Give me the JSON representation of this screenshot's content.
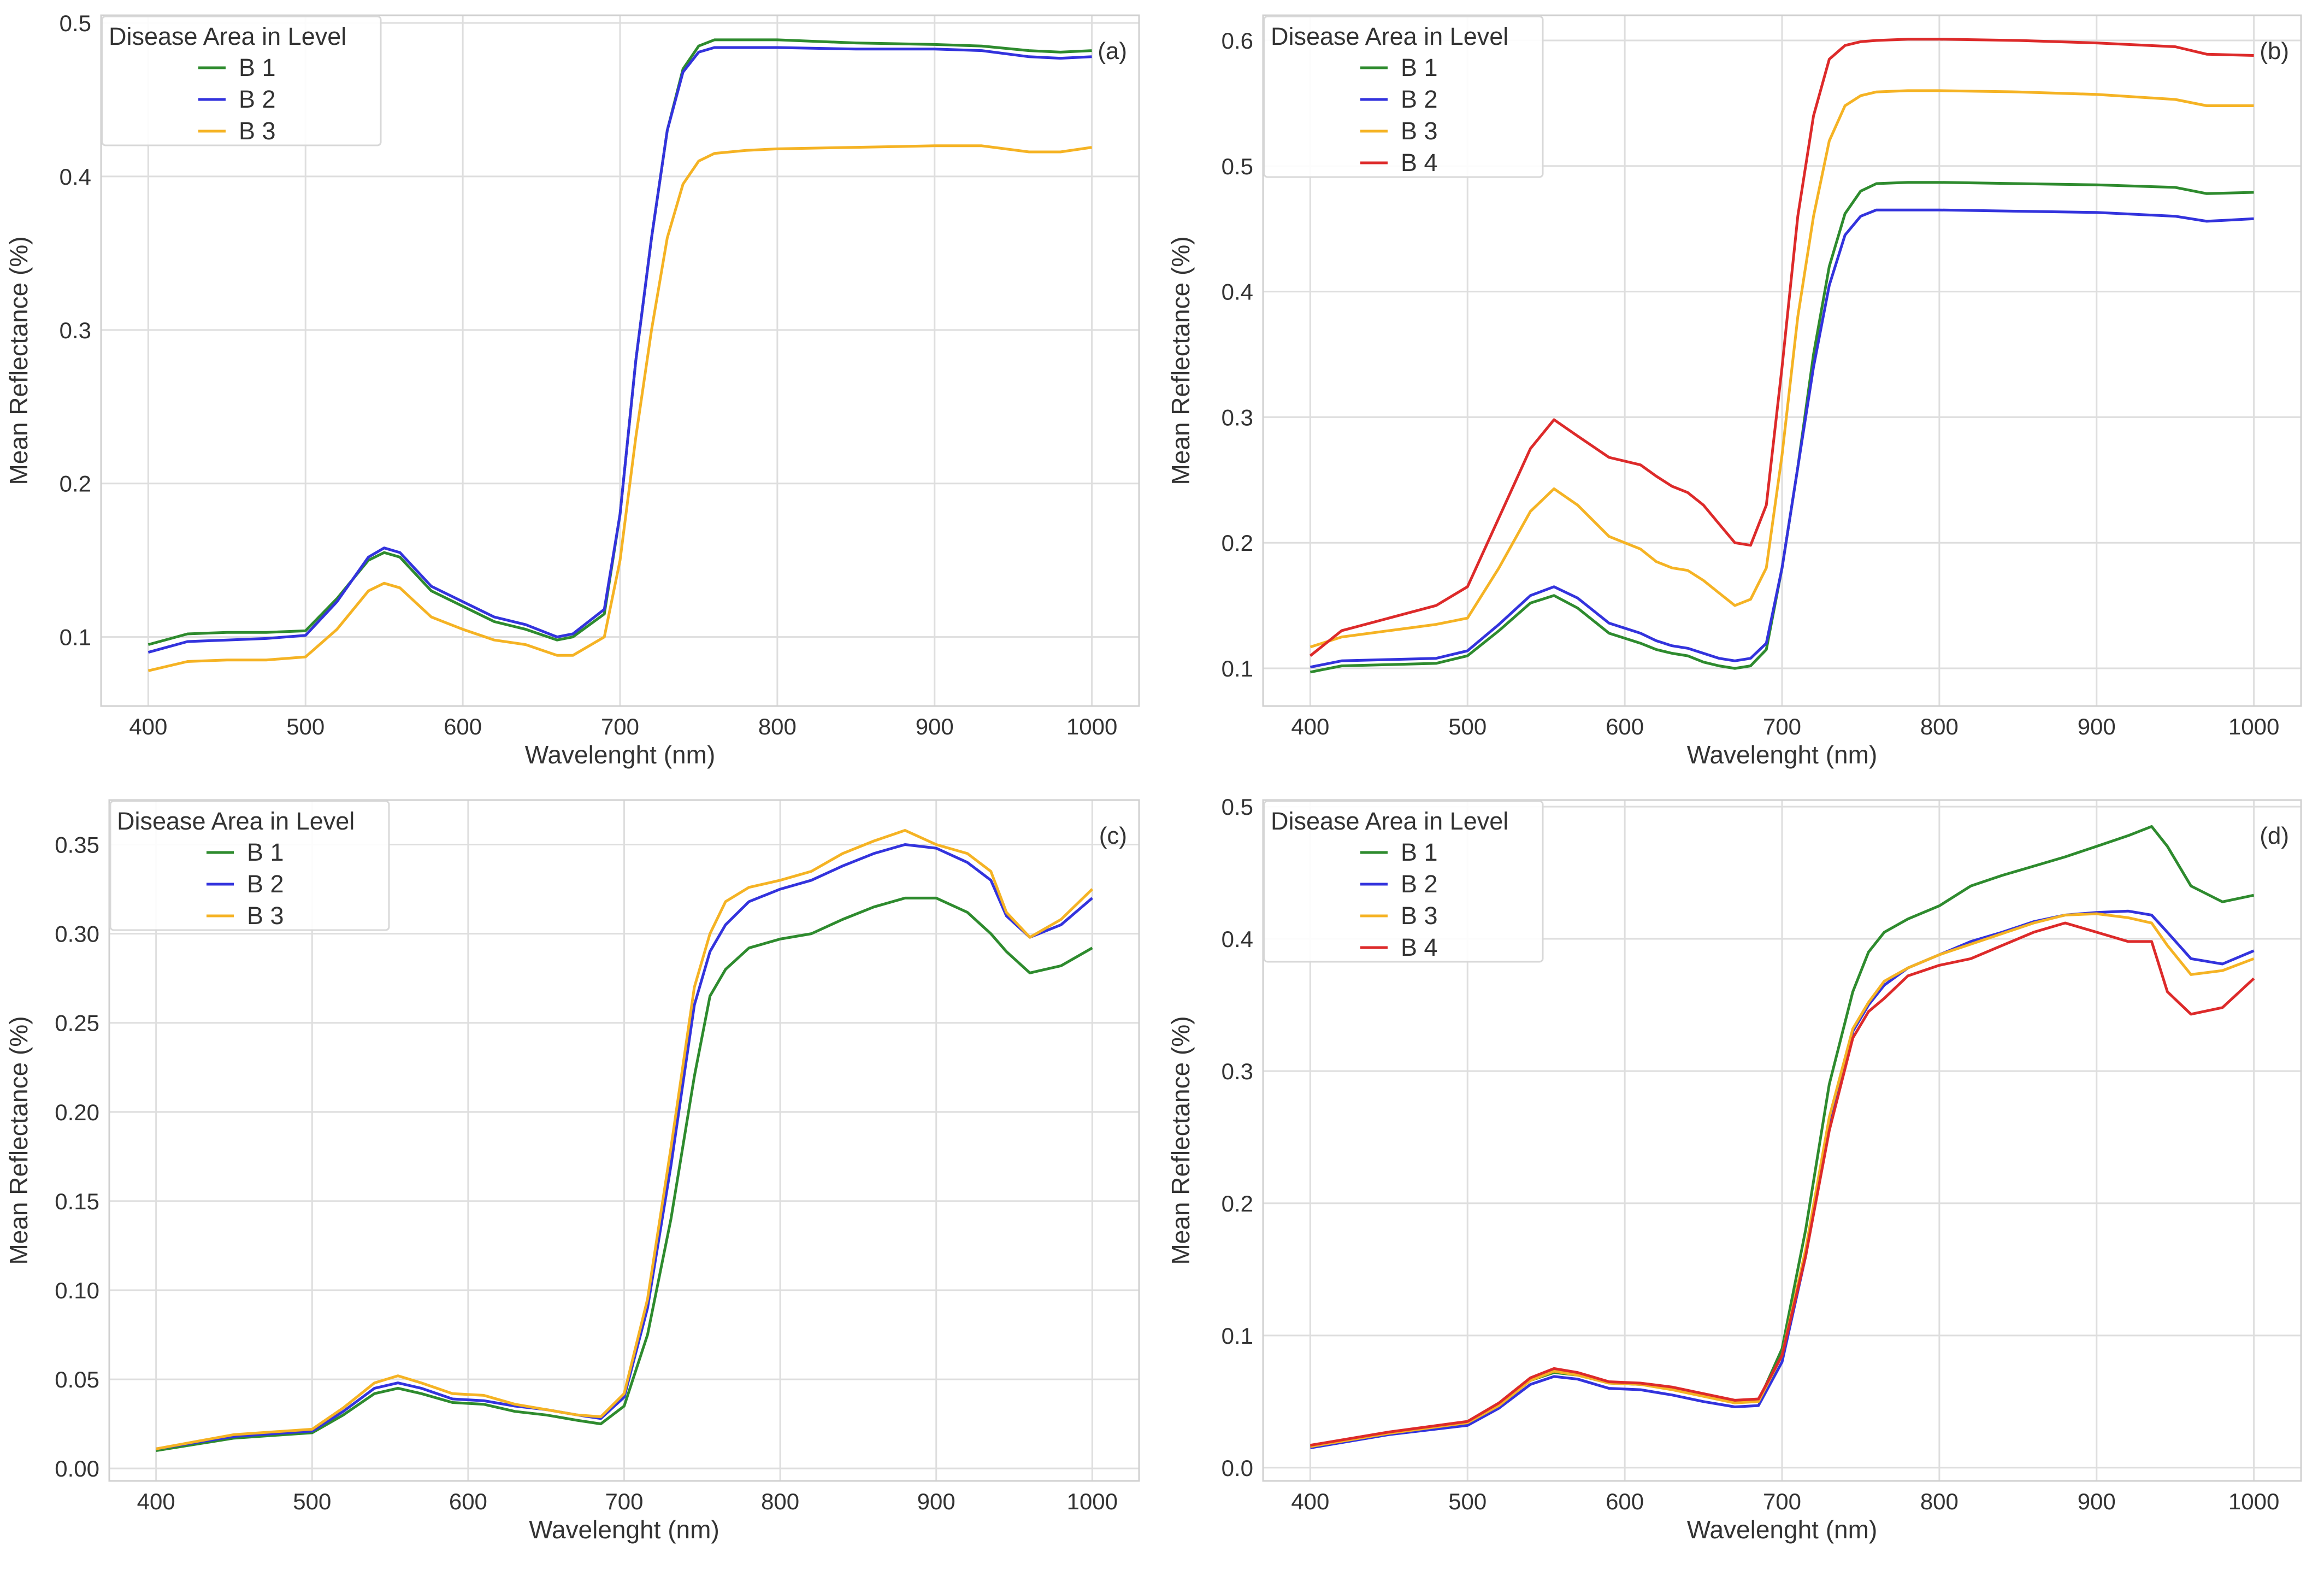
{
  "figure": {
    "xlabel": "Wavelenght (nm)",
    "ylabel": "Mean Reflectance (%)"
  },
  "colors": {
    "B 1": "#2e8b2e",
    "B 2": "#3333dd",
    "B 3": "#f5b324",
    "B 4": "#dd2a2a"
  },
  "chart_data": [
    {
      "type": "line",
      "panel_label": "(a)",
      "legend_title": "Disease Area in Level",
      "legend": [
        "B 1",
        "B 2",
        "B 3"
      ],
      "xlabel": "Wavelenght (nm)",
      "ylabel": "Mean Reflectance (%)",
      "xlim": [
        370,
        1030
      ],
      "ylim": [
        0.055,
        0.505
      ],
      "xticks": [
        400,
        500,
        600,
        700,
        800,
        900,
        1000
      ],
      "xtick_labels": [
        "400",
        "500",
        "600",
        "700",
        "800",
        "900",
        "1000"
      ],
      "yticks": [
        0.1,
        0.2,
        0.3,
        0.4,
        0.5
      ],
      "ytick_labels": [
        "0.1",
        "0.2",
        "0.3",
        "0.4",
        "0.5"
      ],
      "x": [
        400,
        425,
        450,
        475,
        500,
        520,
        540,
        550,
        560,
        580,
        600,
        620,
        640,
        660,
        670,
        690,
        700,
        710,
        720,
        730,
        740,
        750,
        760,
        780,
        800,
        850,
        900,
        930,
        960,
        980,
        1000
      ],
      "series": [
        {
          "name": "B 1",
          "values": [
            0.095,
            0.102,
            0.103,
            0.103,
            0.104,
            0.125,
            0.15,
            0.155,
            0.152,
            0.13,
            0.12,
            0.11,
            0.105,
            0.098,
            0.1,
            0.115,
            0.18,
            0.28,
            0.36,
            0.43,
            0.47,
            0.485,
            0.489,
            0.489,
            0.489,
            0.487,
            0.486,
            0.485,
            0.482,
            0.481,
            0.482
          ]
        },
        {
          "name": "B 2",
          "values": [
            0.09,
            0.097,
            0.098,
            0.099,
            0.101,
            0.123,
            0.152,
            0.158,
            0.155,
            0.133,
            0.123,
            0.113,
            0.108,
            0.1,
            0.102,
            0.118,
            0.18,
            0.28,
            0.36,
            0.43,
            0.468,
            0.481,
            0.484,
            0.484,
            0.484,
            0.483,
            0.483,
            0.482,
            0.478,
            0.477,
            0.478
          ]
        },
        {
          "name": "B 3",
          "values": [
            0.078,
            0.084,
            0.085,
            0.085,
            0.087,
            0.105,
            0.13,
            0.135,
            0.132,
            0.113,
            0.105,
            0.098,
            0.095,
            0.088,
            0.088,
            0.1,
            0.15,
            0.23,
            0.3,
            0.36,
            0.395,
            0.41,
            0.415,
            0.417,
            0.418,
            0.419,
            0.42,
            0.42,
            0.416,
            0.416,
            0.419
          ]
        }
      ]
    },
    {
      "type": "line",
      "panel_label": "(b)",
      "legend_title": "Disease Area in Level",
      "legend": [
        "B 1",
        "B 2",
        "B 3",
        "B 4"
      ],
      "xlabel": "Wavelenght (nm)",
      "ylabel": "Mean Reflectance (%)",
      "xlim": [
        370,
        1030
      ],
      "ylim": [
        0.07,
        0.62
      ],
      "xticks": [
        400,
        500,
        600,
        700,
        800,
        900,
        1000
      ],
      "xtick_labels": [
        "400",
        "500",
        "600",
        "700",
        "800",
        "900",
        "1000"
      ],
      "yticks": [
        0.1,
        0.2,
        0.3,
        0.4,
        0.5,
        0.6
      ],
      "ytick_labels": [
        "0.1",
        "0.2",
        "0.3",
        "0.4",
        "0.5",
        "0.6"
      ],
      "x": [
        400,
        420,
        450,
        480,
        500,
        520,
        540,
        555,
        570,
        590,
        610,
        620,
        630,
        640,
        650,
        660,
        670,
        680,
        690,
        700,
        710,
        720,
        730,
        740,
        750,
        760,
        780,
        800,
        850,
        900,
        950,
        970,
        1000
      ],
      "series": [
        {
          "name": "B 1",
          "values": [
            0.097,
            0.102,
            0.103,
            0.104,
            0.11,
            0.13,
            0.152,
            0.158,
            0.148,
            0.128,
            0.12,
            0.115,
            0.112,
            0.11,
            0.105,
            0.102,
            0.1,
            0.102,
            0.115,
            0.18,
            0.26,
            0.35,
            0.42,
            0.462,
            0.48,
            0.486,
            0.487,
            0.487,
            0.486,
            0.485,
            0.483,
            0.478,
            0.479
          ]
        },
        {
          "name": "B 2",
          "values": [
            0.101,
            0.106,
            0.107,
            0.108,
            0.114,
            0.135,
            0.158,
            0.165,
            0.156,
            0.136,
            0.128,
            0.122,
            0.118,
            0.116,
            0.112,
            0.108,
            0.106,
            0.108,
            0.12,
            0.18,
            0.26,
            0.34,
            0.405,
            0.445,
            0.46,
            0.465,
            0.465,
            0.465,
            0.464,
            0.463,
            0.46,
            0.456,
            0.458
          ]
        },
        {
          "name": "B 3",
          "values": [
            0.117,
            0.125,
            0.13,
            0.135,
            0.14,
            0.18,
            0.225,
            0.243,
            0.23,
            0.205,
            0.195,
            0.185,
            0.18,
            0.178,
            0.17,
            0.16,
            0.15,
            0.155,
            0.18,
            0.27,
            0.38,
            0.46,
            0.52,
            0.548,
            0.556,
            0.559,
            0.56,
            0.56,
            0.559,
            0.557,
            0.553,
            0.548,
            0.548
          ]
        },
        {
          "name": "B 4",
          "values": [
            0.11,
            0.13,
            0.14,
            0.15,
            0.165,
            0.22,
            0.275,
            0.298,
            0.285,
            0.268,
            0.262,
            0.253,
            0.245,
            0.24,
            0.23,
            0.215,
            0.2,
            0.198,
            0.23,
            0.34,
            0.46,
            0.54,
            0.585,
            0.596,
            0.599,
            0.6,
            0.601,
            0.601,
            0.6,
            0.598,
            0.595,
            0.589,
            0.588
          ]
        }
      ]
    },
    {
      "type": "line",
      "panel_label": "(c)",
      "legend_title": "Disease Area in Level",
      "legend": [
        "B 1",
        "B 2",
        "B 3"
      ],
      "xlabel": "Wavelenght (nm)",
      "ylabel": "Mean Reflectance (%)",
      "xlim": [
        370,
        1030
      ],
      "ylim": [
        -0.007,
        0.375
      ],
      "xticks": [
        400,
        500,
        600,
        700,
        800,
        900,
        1000
      ],
      "xtick_labels": [
        "400",
        "500",
        "600",
        "700",
        "800",
        "900",
        "1000"
      ],
      "yticks": [
        0.0,
        0.05,
        0.1,
        0.15,
        0.2,
        0.25,
        0.3,
        0.35
      ],
      "ytick_labels": [
        "0.00",
        "0.05",
        "0.10",
        "0.15",
        "0.20",
        "0.25",
        "0.30",
        "0.35"
      ],
      "x": [
        400,
        450,
        500,
        520,
        540,
        555,
        570,
        590,
        610,
        630,
        650,
        670,
        685,
        700,
        715,
        730,
        745,
        755,
        765,
        780,
        800,
        820,
        840,
        860,
        880,
        900,
        920,
        935,
        945,
        960,
        980,
        1000
      ],
      "series": [
        {
          "name": "B 1",
          "values": [
            0.01,
            0.017,
            0.02,
            0.03,
            0.042,
            0.045,
            0.042,
            0.037,
            0.036,
            0.032,
            0.03,
            0.027,
            0.025,
            0.035,
            0.075,
            0.14,
            0.22,
            0.265,
            0.28,
            0.292,
            0.297,
            0.3,
            0.308,
            0.315,
            0.32,
            0.32,
            0.312,
            0.3,
            0.29,
            0.278,
            0.282,
            0.292
          ]
        },
        {
          "name": "B 2",
          "values": [
            0.011,
            0.018,
            0.021,
            0.032,
            0.045,
            0.048,
            0.045,
            0.039,
            0.038,
            0.035,
            0.033,
            0.03,
            0.028,
            0.04,
            0.09,
            0.17,
            0.26,
            0.29,
            0.305,
            0.318,
            0.325,
            0.33,
            0.338,
            0.345,
            0.35,
            0.348,
            0.34,
            0.33,
            0.31,
            0.298,
            0.305,
            0.32
          ]
        },
        {
          "name": "B 3",
          "values": [
            0.011,
            0.019,
            0.022,
            0.034,
            0.048,
            0.052,
            0.048,
            0.042,
            0.041,
            0.036,
            0.033,
            0.03,
            0.029,
            0.042,
            0.095,
            0.18,
            0.27,
            0.3,
            0.318,
            0.326,
            0.33,
            0.335,
            0.345,
            0.352,
            0.358,
            0.35,
            0.345,
            0.335,
            0.312,
            0.298,
            0.308,
            0.325
          ]
        }
      ]
    },
    {
      "type": "line",
      "panel_label": "(d)",
      "legend_title": "Disease Area in Level",
      "legend": [
        "B 1",
        "B 2",
        "B 3",
        "B 4"
      ],
      "xlabel": "Wavelenght (nm)",
      "ylabel": "Mean Reflectance (%)",
      "xlim": [
        370,
        1030
      ],
      "ylim": [
        -0.01,
        0.505
      ],
      "xticks": [
        400,
        500,
        600,
        700,
        800,
        900,
        1000
      ],
      "xtick_labels": [
        "400",
        "500",
        "600",
        "700",
        "800",
        "900",
        "1000"
      ],
      "yticks": [
        0.0,
        0.1,
        0.2,
        0.3,
        0.4,
        0.5
      ],
      "ytick_labels": [
        "0.0",
        "0.1",
        "0.2",
        "0.3",
        "0.4",
        "0.5"
      ],
      "x": [
        400,
        450,
        500,
        520,
        540,
        555,
        570,
        590,
        610,
        630,
        650,
        670,
        685,
        700,
        715,
        730,
        745,
        755,
        765,
        780,
        800,
        820,
        840,
        860,
        880,
        900,
        920,
        935,
        945,
        960,
        980,
        1000
      ],
      "series": [
        {
          "name": "B 1",
          "values": [
            0.016,
            0.026,
            0.034,
            0.048,
            0.066,
            0.072,
            0.07,
            0.064,
            0.063,
            0.06,
            0.055,
            0.05,
            0.05,
            0.09,
            0.18,
            0.29,
            0.36,
            0.39,
            0.405,
            0.415,
            0.425,
            0.44,
            0.448,
            0.455,
            0.462,
            0.47,
            0.478,
            0.485,
            0.47,
            0.44,
            0.428,
            0.433
          ]
        },
        {
          "name": "B 2",
          "values": [
            0.015,
            0.025,
            0.032,
            0.045,
            0.063,
            0.069,
            0.067,
            0.06,
            0.059,
            0.055,
            0.05,
            0.046,
            0.047,
            0.08,
            0.16,
            0.26,
            0.33,
            0.35,
            0.365,
            0.378,
            0.388,
            0.398,
            0.405,
            0.413,
            0.418,
            0.42,
            0.421,
            0.418,
            0.405,
            0.385,
            0.381,
            0.391
          ]
        },
        {
          "name": "B 3",
          "values": [
            0.016,
            0.026,
            0.034,
            0.047,
            0.066,
            0.073,
            0.07,
            0.064,
            0.063,
            0.059,
            0.054,
            0.049,
            0.05,
            0.085,
            0.165,
            0.265,
            0.332,
            0.352,
            0.368,
            0.378,
            0.388,
            0.396,
            0.404,
            0.412,
            0.418,
            0.419,
            0.416,
            0.412,
            0.395,
            0.373,
            0.376,
            0.385
          ]
        },
        {
          "name": "B 4",
          "values": [
            0.017,
            0.027,
            0.035,
            0.049,
            0.068,
            0.075,
            0.072,
            0.065,
            0.064,
            0.061,
            0.056,
            0.051,
            0.052,
            0.085,
            0.16,
            0.255,
            0.325,
            0.345,
            0.355,
            0.372,
            0.38,
            0.385,
            0.395,
            0.405,
            0.412,
            0.405,
            0.398,
            0.398,
            0.36,
            0.343,
            0.348,
            0.37
          ]
        }
      ]
    }
  ]
}
